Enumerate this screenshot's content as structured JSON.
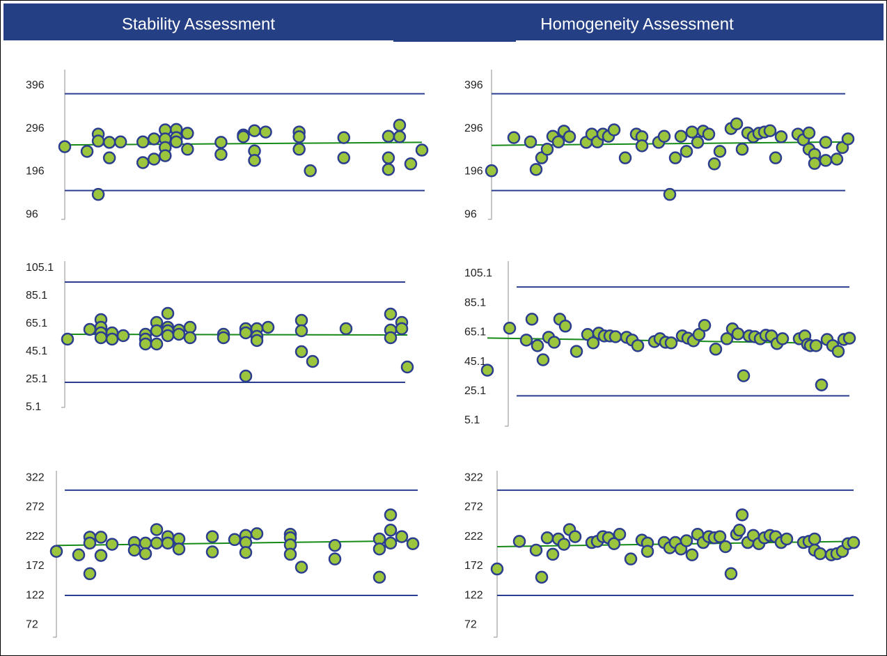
{
  "headers": {
    "left": "Stability Assessment",
    "right": "Homogeneity Assessment"
  },
  "chart_data": [
    {
      "type": "scatter",
      "x": [
        0,
        2,
        3,
        3,
        3,
        4,
        4,
        5,
        7,
        7,
        8,
        8,
        9,
        9,
        9,
        9,
        10,
        10,
        10,
        11,
        11,
        14,
        14,
        16,
        16,
        17,
        17,
        17,
        18,
        21,
        21,
        21,
        22,
        25,
        25,
        29,
        29,
        29,
        30,
        30,
        31,
        32
      ],
      "values": [
        254,
        243,
        283,
        267,
        143,
        264,
        228,
        265,
        265,
        217,
        272,
        225,
        293,
        272,
        252,
        233,
        294,
        275,
        265,
        285,
        248,
        264,
        236,
        281,
        277,
        244,
        222,
        291,
        288,
        288,
        277,
        248,
        198,
        275,
        228,
        278,
        228,
        201,
        304,
        277,
        214,
        246
      ],
      "xlim": [
        0,
        32
      ],
      "ylim": [
        85,
        433
      ],
      "yticks": [
        96,
        196,
        296,
        396
      ],
      "limits": [
        377,
        152
      ],
      "trend": [
        258,
        264
      ],
      "point_color": "#9bc53d",
      "edge_color": "#2b3d8f",
      "limit_color": "#2b3d8f",
      "trend_color": "#168a16"
    },
    {
      "type": "scatter",
      "x": [
        0,
        2,
        3,
        3,
        3,
        3,
        4,
        4,
        5,
        7,
        7,
        7,
        8,
        8,
        8,
        9,
        9,
        9,
        9,
        10,
        10,
        11,
        11,
        14,
        14,
        16,
        16,
        16,
        17,
        17,
        17,
        18,
        21,
        21,
        21,
        22,
        25,
        29,
        29,
        29,
        30,
        30,
        30.5
      ],
      "values": [
        54.1,
        61.1,
        68.1,
        62.6,
        58.6,
        55.1,
        58.6,
        54.1,
        56.6,
        57.6,
        54.1,
        50.6,
        66.1,
        60.1,
        50.6,
        72.6,
        62.6,
        60.1,
        56.6,
        60.6,
        57.6,
        62.6,
        55.1,
        57.6,
        55.1,
        61.6,
        58.6,
        27.6,
        61.6,
        56.1,
        53.1,
        62.6,
        67.6,
        60.1,
        45.1,
        38.1,
        61.6,
        72.1,
        60.6,
        55.1,
        66.1,
        61.6,
        34.1
      ],
      "xlim": [
        0,
        30.5
      ],
      "ylim": [
        5.1,
        110.1
      ],
      "yticks": [
        5.1,
        25.1,
        45.1,
        65.1,
        85.1,
        105.1
      ],
      "limits": [
        95.1,
        23.1
      ],
      "trend": [
        57.6,
        57.1
      ],
      "point_color": "#9bc53d",
      "edge_color": "#2b3d8f",
      "limit_color": "#2b3d8f",
      "trend_color": "#168a16"
    },
    {
      "type": "scatter",
      "x": [
        0,
        2,
        3,
        3,
        3,
        4,
        4,
        5,
        7,
        7,
        8,
        8,
        9,
        9,
        10,
        10,
        11,
        11,
        14,
        14,
        16,
        17,
        17,
        17,
        18,
        21,
        21,
        21,
        21,
        22,
        25,
        25,
        29,
        29,
        29,
        30,
        30,
        30,
        31,
        32
      ],
      "values": [
        197,
        191,
        221,
        211,
        159,
        221,
        190,
        209,
        212,
        199,
        211,
        193,
        234,
        211,
        222,
        211,
        218,
        201,
        222,
        196,
        217,
        224,
        212,
        195,
        227,
        226,
        220,
        208,
        192,
        170,
        207,
        184,
        218,
        201,
        153,
        259,
        233,
        211,
        222,
        210
      ],
      "xlim": [
        0,
        32
      ],
      "ylim": [
        51,
        334
      ],
      "yticks": [
        72,
        122,
        172,
        222,
        272,
        322
      ],
      "limits": [
        301,
        122
      ],
      "trend": [
        207,
        215
      ],
      "point_color": "#9bc53d",
      "edge_color": "#2b3d8f",
      "limit_color": "#2b3d8f",
      "trend_color": "#168a16"
    },
    {
      "type": "scatter",
      "x": [
        0,
        4,
        7,
        8,
        9,
        10,
        11,
        12,
        13,
        14,
        17,
        18,
        19,
        20,
        21,
        22,
        24,
        26,
        27,
        27,
        30,
        31,
        32,
        33,
        34,
        35,
        36,
        37,
        38,
        39,
        40,
        41,
        43,
        44,
        45,
        46,
        47,
        48,
        49,
        50,
        51,
        52,
        55,
        56,
        57,
        57,
        58,
        58,
        60,
        60,
        62,
        63,
        64
      ],
      "values": [
        198,
        275,
        265,
        201,
        228,
        248,
        278,
        265,
        290,
        277,
        264,
        283,
        265,
        283,
        278,
        293,
        228,
        283,
        277,
        256,
        264,
        278,
        143,
        228,
        278,
        243,
        288,
        264,
        290,
        283,
        214,
        243,
        296,
        307,
        248,
        286,
        277,
        285,
        288,
        291,
        228,
        277,
        283,
        270,
        286,
        248,
        236,
        215,
        222,
        264,
        225,
        252,
        272
      ],
      "xlim": [
        0,
        64
      ],
      "ylim": [
        85,
        433
      ],
      "yticks": [
        96,
        196,
        296,
        396
      ],
      "limits": [
        377,
        152
      ],
      "trend": [
        257,
        265
      ],
      "point_color": "#9bc53d",
      "edge_color": "#2b3d8f",
      "limit_color": "#2b3d8f",
      "trend_color": "#168a16"
    },
    {
      "type": "scatter",
      "x": [
        0,
        4,
        7,
        8,
        9,
        10,
        11,
        12,
        13,
        14,
        16,
        18,
        19,
        20,
        21,
        22,
        23,
        25,
        26,
        27,
        30,
        31,
        32,
        33,
        35,
        36,
        37,
        38,
        39,
        41,
        43,
        44,
        45,
        46,
        47,
        48,
        49,
        50,
        51,
        52,
        53,
        56,
        57,
        57.5,
        58,
        59,
        60,
        61,
        62,
        63,
        64,
        65
      ],
      "values": [
        39.4,
        68,
        59.9,
        74.1,
        56.1,
        46.5,
        61.8,
        58.4,
        74.1,
        69.4,
        52.2,
        63.7,
        58,
        64.6,
        62.7,
        62.7,
        62.2,
        61.8,
        59.9,
        56.1,
        58.9,
        60.8,
        58.4,
        58,
        62.7,
        61.2,
        59.4,
        63.7,
        69.9,
        53.7,
        60.8,
        67.5,
        64.1,
        35.6,
        62.7,
        62.2,
        60.8,
        63.2,
        62.7,
        57.5,
        60.8,
        60.8,
        62.7,
        57,
        56.1,
        56.1,
        29.4,
        60.3,
        56.1,
        52.2,
        60.3,
        61.2
      ],
      "xlim": [
        0,
        65
      ],
      "ylim": [
        1.3,
        113.6
      ],
      "yticks": [
        5.1,
        25.1,
        45.1,
        65.1,
        85.1,
        105.1
      ],
      "limits": [
        96,
        22
      ],
      "trend": [
        61.3,
        57.5
      ],
      "point_color": "#9bc53d",
      "edge_color": "#2b3d8f",
      "limit_color": "#2b3d8f",
      "trend_color": "#168a16"
    },
    {
      "type": "scatter",
      "x": [
        0,
        4,
        7,
        8,
        9,
        10,
        11,
        12,
        13,
        14,
        17,
        18,
        19,
        20,
        21,
        22,
        24,
        26,
        27,
        27,
        30,
        31,
        32,
        33,
        34,
        35,
        36,
        37,
        38,
        39,
        40,
        41,
        42,
        43,
        43.5,
        44,
        45,
        46,
        47,
        48,
        49,
        50,
        51,
        52,
        55,
        56,
        57,
        57,
        58,
        60,
        61,
        62,
        63,
        64
      ],
      "values": [
        167,
        214,
        199,
        153,
        220,
        192,
        218,
        209,
        234,
        222,
        212,
        214,
        222,
        220,
        210,
        226,
        184,
        216,
        211,
        197,
        212,
        203,
        212,
        201,
        215,
        191,
        226,
        212,
        222,
        220,
        222,
        205,
        159,
        226,
        233,
        259,
        212,
        224,
        210,
        220,
        224,
        222,
        212,
        218,
        212,
        214,
        218,
        199,
        193,
        191,
        193,
        197,
        210,
        212
      ],
      "xlim": [
        0,
        64
      ],
      "ylim": [
        51,
        334
      ],
      "yticks": [
        72,
        122,
        172,
        222,
        272,
        322
      ],
      "limits": [
        301,
        122
      ],
      "trend": [
        205,
        214
      ],
      "point_color": "#9bc53d",
      "edge_color": "#2b3d8f",
      "limit_color": "#2b3d8f",
      "trend_color": "#168a16"
    }
  ]
}
